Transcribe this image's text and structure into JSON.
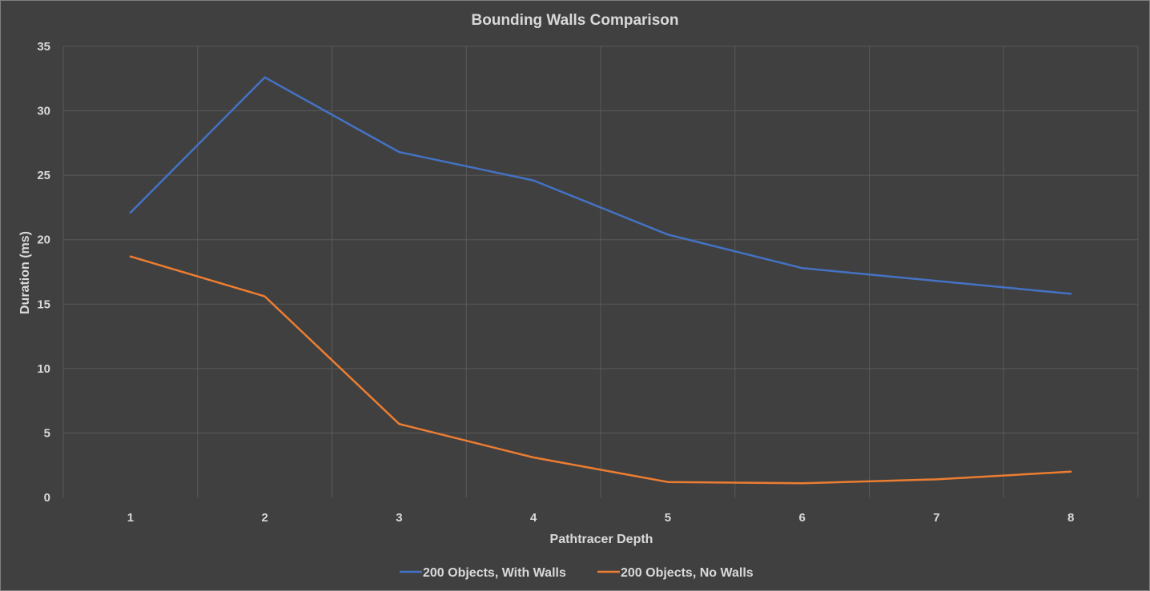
{
  "chart_data": {
    "type": "line",
    "title": "Bounding Walls Comparison",
    "xlabel": "Pathtracer Depth",
    "ylabel": "Duration (ms)",
    "x": [
      "1",
      "2",
      "3",
      "4",
      "5",
      "6",
      "7",
      "8"
    ],
    "ylim": [
      0,
      35
    ],
    "yticks": [
      "0",
      "5",
      "10",
      "15",
      "20",
      "25",
      "30",
      "35"
    ],
    "grid": true,
    "legend_position": "bottom",
    "series": [
      {
        "name": "200 Objects, With Walls",
        "color": "#4472c4",
        "values": [
          22.1,
          32.6,
          26.8,
          24.6,
          20.4,
          17.8,
          16.8,
          15.8
        ]
      },
      {
        "name": "200 Objects, No Walls",
        "color": "#ed7d31",
        "values": [
          18.7,
          15.6,
          5.7,
          3.1,
          1.2,
          1.1,
          1.4,
          2.0
        ]
      }
    ]
  }
}
